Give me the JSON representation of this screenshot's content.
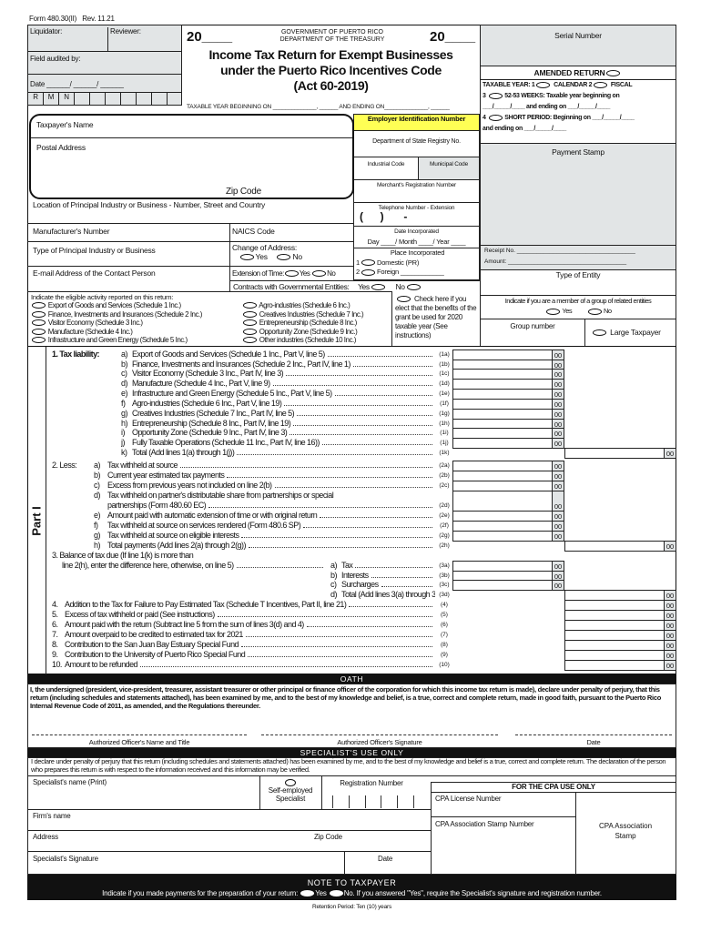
{
  "header": {
    "form_number": "Form 480.30(II)",
    "revision": "Rev. 11.21",
    "year_left": "20____",
    "year_right": "20____",
    "gov_line1": "GOVERNMENT OF PUERTO RICO",
    "gov_line2": "DEPARTMENT OF THE TREASURY",
    "title_line1": "Income Tax Return for Exempt Businesses",
    "title_line2": "under the Puerto Rico Incentives Code",
    "title_line3": "(Act 60-2019)",
    "taxable_year_text": "TAXABLE YEAR BEGINNING ON ______________, ______ AND ENDING ON______________, ______"
  },
  "office": {
    "liquidator": "Liquidator:",
    "reviewer": "Reviewer:",
    "field_audited": "Field audited by:",
    "date": "Date ______/ ______/ ______",
    "rmn": [
      "R",
      "M",
      "N"
    ]
  },
  "right_panel": {
    "serial_number": "Serial Number",
    "amended_return": "AMENDED RETURN",
    "taxable_year": "TAXABLE YEAR: 1",
    "calendar": "CALENDAR  2",
    "fiscal": "FISCAL",
    "weeks": "52-53 WEEKS: Taxable year beginning on",
    "weeks_dates": "___/_____/____ and ending on ___/_____/____",
    "short_period": "SHORT PERIOD: Beginning on ___/_____/____",
    "short_end": "and ending on ___/_____/____",
    "payment_stamp": "Payment Stamp",
    "receipt": "Receipt  No. ____________________________________",
    "amount": "Amount: ____________________________________",
    "type_of_entity": "Type of Entity",
    "group_related": "Indicate if you are a member of a group of related entities",
    "yes": "Yes",
    "no": "No",
    "group_number": "Group number",
    "large_taxpayer": "Large Taxpayer"
  },
  "taxpayer": {
    "name": "Taxpayer's Name",
    "postal_address": "Postal Address",
    "zip_code": "Zip Code",
    "location": "Location of Principal Industry or Business - Number, Street and Country",
    "manufacturer": "Manufacturer's Number",
    "naics": "NAICS Code",
    "type_industry": "Type of Principal Industry or Business",
    "change_address": "Change of Address:",
    "email": "E-mail Address of the Contact Person",
    "extension": "Extension of Time:",
    "yes": "Yes",
    "no": "No",
    "contracts": "Contracts with Governmental Entities:"
  },
  "ids": {
    "ein": "Employer Identification Number",
    "state_registry": "Department of State Registry No.",
    "industrial_code": "Industrial Code",
    "municipal_code": "Municipal Code",
    "merchant": "Merchant's Registration Number",
    "telephone": "Telephone Number - Extension",
    "phone_mask": "(      )       -",
    "date_incorporated": "Date Incorporated",
    "date_fields": "Day ____/ Month ____/ Year ____",
    "place_incorporated": "Place Incorporated",
    "domestic": "Domestic (PR)",
    "foreign": "Foreign ____________"
  },
  "activity": {
    "heading": "Indicate the eligible activity reported on this return:",
    "left": [
      "Export of Goods and Services (Schedule 1 Inc.)",
      "Finance, Investments and Insurances (Schedule 2 Inc.)",
      "Visitor Economy (Schedule 3 Inc.)",
      "Manufacture (Schedule 4 Inc.)",
      "Infrastructure and Green Energy (Schedule 5 Inc.)"
    ],
    "right": [
      "Agro-industries (Schedule 6 Inc.)",
      "Creatives Industries (Schedule 7 Inc.)",
      "Entrepreneurship (Schedule 8 Inc.)",
      "Opportunity Zone (Schedule 9 Inc.)",
      "Other industries (Schedule 10 Inc.)"
    ],
    "check_here": "Check here if you elect that the benefits of the grant be used for 2020 taxable year (See instructions)"
  },
  "part1": {
    "label": "Part I",
    "lines": [
      {
        "pre": "1.  Tax liability:",
        "letter": "a)",
        "text": "Export of Goods and Services (Schedule 1 Inc., Part V, line 5)",
        "code": "(1a)",
        "amount_cents": "00"
      },
      {
        "letter": "b)",
        "text": "Finance, Investments and Insurances (Schedule 2 Inc., Part IV, line 1)",
        "code": "(1b)",
        "amount_cents": "00"
      },
      {
        "letter": "c)",
        "text": "Visitor Economy (Schedule 3 Inc., Part IV, line 3)",
        "code": "(1c)",
        "amount_cents": "00"
      },
      {
        "letter": "d)",
        "text": "Manufacture (Schedule 4 Inc., Part V, line 9)",
        "code": "(1d)",
        "amount_cents": "00"
      },
      {
        "letter": "e)",
        "text": "Infrastructure and Green Energy (Schedule 5 Inc., Part V, line 5)",
        "code": "(1e)",
        "amount_cents": "00"
      },
      {
        "letter": "f)",
        "text": "Agro-industries (Schedule 6 Inc., Part V, line 19)",
        "code": "(1f)",
        "amount_cents": "00"
      },
      {
        "letter": "g)",
        "text": "Creatives Industries (Schedule 7 Inc., Part IV, line 5)",
        "code": "(1g)",
        "amount_cents": "00"
      },
      {
        "letter": "h)",
        "text": "Entrepreneurship (Schedule 8 Inc., Part IV, line 19)",
        "code": "(1h)",
        "amount_cents": "00"
      },
      {
        "letter": "i)",
        "text": "Opportunity Zone (Schedule 9 Inc., Part IV, line 3)",
        "code": "(1i)",
        "amount_cents": "00"
      },
      {
        "letter": "j)",
        "text": "Fully Taxable Operations (Schedule 11 Inc., Part IV, line 16))",
        "code": "(1j)",
        "amount_cents": "00"
      },
      {
        "letter": "k)",
        "text": "Total (Add lines 1(a) through 1(j))",
        "code": "(1k)",
        "amount_cents": "00"
      },
      {
        "pre": "2.  Less:",
        "letter": "a)",
        "text": "Tax withheld at source",
        "code": "(2a)",
        "amount_cents": "00"
      },
      {
        "letter": "b)",
        "text": "Current year estimated tax payments",
        "code": "(2b)",
        "amount_cents": "00"
      },
      {
        "letter": "c)",
        "text": "Excess from previous years not included on line 2(b)",
        "code": "(2c)",
        "amount_cents": "00"
      },
      {
        "letter": "d)",
        "text": "Tax withheld on partner's distributable share from partnerships or special",
        "text2": "partnerships (Form 480.60 EC)",
        "code": "(2d)",
        "amount_cents": "00"
      },
      {
        "letter": "e)",
        "text": "Amount paid with automatic extension of time or with original return",
        "code": "(2e)",
        "amount_cents": "00"
      },
      {
        "letter": "f)",
        "text": "Tax withheld at source on services rendered (Form 480.6 SP)",
        "code": "(2f)",
        "amount_cents": "00"
      },
      {
        "letter": "g)",
        "text": "Tax withheld at source on eligible interests",
        "code": "(2g)",
        "amount_cents": "00"
      },
      {
        "letter": "h)",
        "text": "Total payments (Add lines 2(a) through 2(g))",
        "code": "(2h)",
        "amount_cents": "00"
      },
      {
        "pre": "3.  Balance of tax due (If line 1(k) is more than",
        "text2": "line 2(h), enter the difference here, otherwise, on line 5)",
        "letter": "a)",
        "text": "Tax",
        "code": "(3a)",
        "amount_cents": "00"
      },
      {
        "letter": "b)",
        "text": "Interests",
        "code": "(3b)",
        "amount_cents": "00"
      },
      {
        "letter": "c)",
        "text": "Surcharges",
        "code": "(3c)",
        "amount_cents": "00"
      },
      {
        "letter": "d)",
        "text": "Total (Add lines 3(a) through 3(c))",
        "code": "(3d)",
        "amount_cents": "00"
      },
      {
        "pre": "4.",
        "text": "Addition to the Tax for Failure to Pay Estimated Tax (Schedule T Incentives, Part II, line 21)",
        "code": "(4)",
        "amount_cents": "00"
      },
      {
        "pre": "5.",
        "text": "Excess of tax withheld or paid (See instructions)",
        "code": "(5)",
        "amount_cents": "00"
      },
      {
        "pre": "6.",
        "text": "Amount paid with the return (Subtract line 5 from the sum of lines 3(d) and 4)",
        "code": "(6)",
        "amount_cents": "00"
      },
      {
        "pre": "7.",
        "text": "Amount overpaid to be credited to estimated tax for 2021",
        "code": "(7)",
        "amount_cents": "00"
      },
      {
        "pre": "8.",
        "text": "Contribution to the San Juan Bay Estuary Special Fund",
        "code": "(8)",
        "amount_cents": "00"
      },
      {
        "pre": "9.",
        "text": "Contribution to the University of Puerto Rico Special Fund",
        "code": "(9)",
        "amount_cents": "00"
      },
      {
        "pre": "10.",
        "text": "Amount to be refunded",
        "code": "(10)",
        "amount_cents": "00"
      }
    ]
  },
  "oath": {
    "title": "OATH",
    "text": "I, the undersigned (president, vice-president, treasurer, assistant treasurer or other principal or finance officer of the corporation for which this income tax return is made), declare under penalty of perjury, that this return (including schedules and statements attached), has been examined by me, and to the best of my knowledge and belief, is a true, correct and complete return, made in good faith, pursuant to the Puerto Rico Internal Revenue Code of 2011, as amended, and the Regulations thereunder.",
    "officer_name": "Authorized Officer's Name and Title",
    "officer_signature": "Authorized Officer's Signature",
    "date": "Date"
  },
  "specialist": {
    "title": "SPECIALIST'S USE ONLY",
    "text": "I declare under penalty of perjury that this return (including schedules and statements attached) has been examined by me, and to the best of my knowledge and belief is a true, correct and complete return. The declaration of the person who prepares this return is with respect to the information received and this information may be verified.",
    "name": "Specialist's name (Print)",
    "self_employed": "Self-employed Specialist",
    "registration": "Registration Number",
    "firm": "Firm's name",
    "address": "Address",
    "zip": "Zip Code",
    "signature": "Specialist's Signature",
    "date": "Date",
    "cpa_title": "FOR THE CPA USE ONLY",
    "cpa_license": "CPA License Number",
    "cpa_stamp_number": "CPA Association Stamp Number",
    "cpa_stamp": "CPA Association Stamp"
  },
  "note": {
    "title": "NOTE TO TAXPAYER",
    "text1": "Indicate if you made payments for the preparation of your return:",
    "yes": "Yes",
    "text2": "No. If you answered \"Yes\", require the Specialist's signature and registration number."
  },
  "footer": {
    "retention": "Retention Period: Ten (10) years"
  },
  "colors": {
    "ein_highlight": "#ffff55",
    "shaded": "#e2e5e6",
    "bars": "#111111"
  }
}
